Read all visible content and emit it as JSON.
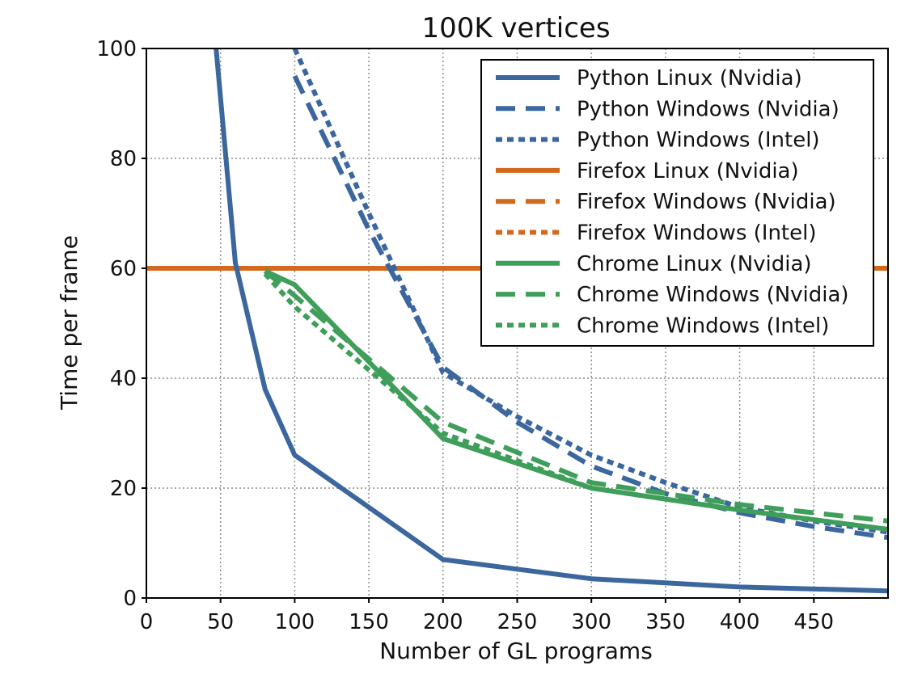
{
  "chart_data": {
    "type": "line",
    "title": "100K vertices",
    "xlabel": "Number of GL programs",
    "ylabel": "Time per frame",
    "xlim": [
      0,
      500
    ],
    "ylim": [
      0,
      100
    ],
    "xticks": [
      0,
      50,
      100,
      150,
      200,
      250,
      300,
      350,
      400,
      450
    ],
    "yticks": [
      0,
      20,
      40,
      60,
      80,
      100
    ],
    "xtick_labels": [
      "0",
      "50",
      "100",
      "150",
      "200",
      "250",
      "300",
      "350",
      "400",
      "450"
    ],
    "ytick_labels": [
      "0",
      "20",
      "40",
      "60",
      "80",
      "100"
    ],
    "grid": true,
    "legend_position": "top-right",
    "colors": {
      "python": "#3b679e",
      "firefox": "#d2691e",
      "chrome": "#3f9e5a"
    },
    "series": [
      {
        "name": "Python Linux (Nvidia)",
        "color": "#3b679e",
        "style": "solid",
        "x": [
          47,
          60,
          80,
          100,
          200,
          300,
          400,
          500
        ],
        "y": [
          100,
          61,
          38,
          26,
          7,
          3.5,
          2,
          1.3
        ]
      },
      {
        "name": "Python Windows (Nvidia)",
        "color": "#3b679e",
        "style": "dashed",
        "x": [
          100,
          150,
          200,
          250,
          300,
          350,
          400,
          450,
          500
        ],
        "y": [
          95,
          67,
          42,
          32,
          24,
          19,
          15.5,
          13,
          11
        ]
      },
      {
        "name": "Python Windows (Intel)",
        "color": "#3b679e",
        "style": "dotted",
        "x": [
          100,
          150,
          200,
          250,
          300,
          350,
          400,
          450,
          500
        ],
        "y": [
          100,
          70,
          41,
          33,
          26,
          21,
          16.5,
          14,
          12
        ]
      },
      {
        "name": "Firefox Linux (Nvidia)",
        "color": "#d2691e",
        "style": "solid",
        "x": [
          0,
          500
        ],
        "y": [
          60,
          60
        ]
      },
      {
        "name": "Firefox Windows (Nvidia)",
        "color": "#d2691e",
        "style": "dashed",
        "x": [
          0,
          500
        ],
        "y": [
          60,
          60
        ]
      },
      {
        "name": "Firefox Windows (Intel)",
        "color": "#d2691e",
        "style": "dotted",
        "x": [
          0,
          500
        ],
        "y": [
          60,
          60
        ]
      },
      {
        "name": "Chrome Linux (Nvidia)",
        "color": "#3f9e5a",
        "style": "solid",
        "x": [
          80,
          100,
          200,
          300,
          400,
          500
        ],
        "y": [
          59.5,
          57,
          29,
          20,
          16,
          12.5
        ]
      },
      {
        "name": "Chrome Windows (Nvidia)",
        "color": "#3f9e5a",
        "style": "dashed",
        "x": [
          80,
          100,
          200,
          300,
          400,
          500
        ],
        "y": [
          59.5,
          55,
          32,
          21,
          17,
          14
        ]
      },
      {
        "name": "Chrome Windows (Intel)",
        "color": "#3f9e5a",
        "style": "dotted",
        "x": [
          80,
          100,
          200,
          300,
          400,
          500
        ],
        "y": [
          59,
          53,
          30,
          20,
          16,
          12.5
        ]
      }
    ]
  }
}
